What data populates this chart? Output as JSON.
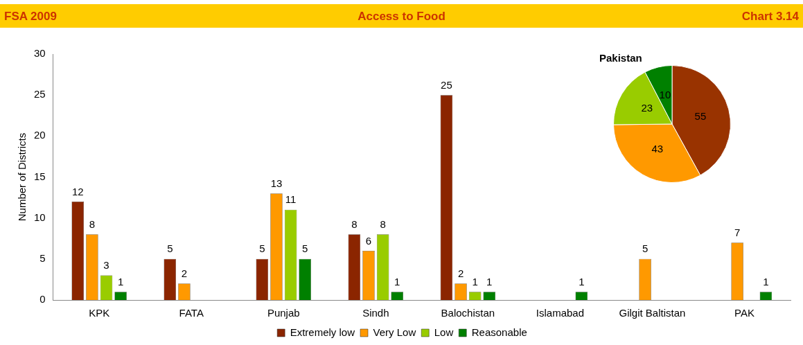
{
  "chart_data": [
    {
      "type": "bar",
      "title": "Access to Food",
      "annotations": [
        "FSA 2009",
        "Chart 3.14"
      ],
      "ylabel": "Number of Districts",
      "categories": [
        "KPK",
        "FATA",
        "Punjab",
        "Sindh",
        "Balochistan",
        "Islamabad",
        "Gilgit Baltistan",
        "PAK"
      ],
      "series": [
        {
          "name": "Extremely low",
          "color": "#8b2500",
          "values": [
            12,
            5,
            5,
            8,
            25,
            null,
            null,
            null
          ]
        },
        {
          "name": "Very Low",
          "color": "#ff9900",
          "values": [
            8,
            2,
            13,
            6,
            2,
            null,
            5,
            7
          ]
        },
        {
          "name": "Low",
          "color": "#99cc00",
          "values": [
            3,
            null,
            11,
            8,
            1,
            null,
            null,
            null
          ]
        },
        {
          "name": "Reasonable",
          "color": "#008000",
          "values": [
            1,
            null,
            5,
            1,
            1,
            1,
            null,
            1
          ]
        }
      ],
      "ylim": [
        0,
        30
      ],
      "yticks": [
        0,
        5,
        10,
        15,
        20,
        25,
        30
      ],
      "grid": false,
      "legend": "bottom",
      "data_labels": true
    },
    {
      "type": "pie",
      "title": "Pakistan",
      "categories": [
        null,
        null,
        null,
        null
      ],
      "values": [
        55,
        43,
        23,
        10
      ],
      "colors": [
        "#993300",
        "#ff9900",
        "#99cc00",
        "#008000"
      ],
      "data_labels": true,
      "legend": false
    }
  ]
}
